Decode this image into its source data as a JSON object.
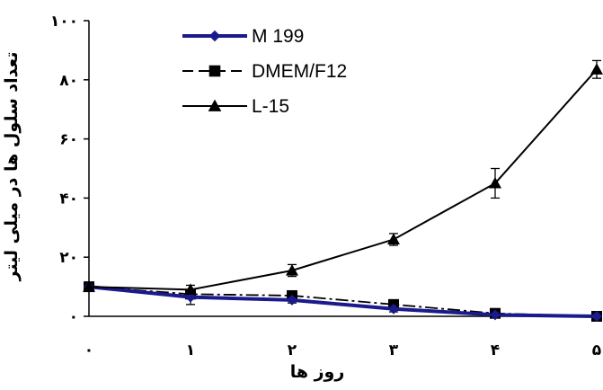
{
  "chart_data": {
    "type": "line",
    "title": "",
    "xlabel": "روز ها",
    "ylabel": "تعداد سلول ها در میلی لیتر",
    "x": [
      0,
      1,
      2,
      3,
      4,
      5
    ],
    "x_tick_labels": [
      "۰",
      "۱",
      "۲",
      "۳",
      "۴",
      "۵"
    ],
    "ylim": [
      0,
      100
    ],
    "y_ticks": [
      0,
      20,
      40,
      60,
      80,
      100
    ],
    "y_tick_labels": [
      "۰",
      "۲۰",
      "۴۰",
      "۶۰",
      "۸۰",
      "۱۰۰"
    ],
    "grid": false,
    "legend_position": "top-left",
    "series": [
      {
        "name": "M 199",
        "values": [
          10,
          6.5,
          5.5,
          2.5,
          0.5,
          0
        ],
        "errors": [
          0,
          2.5,
          1,
          1,
          0.5,
          0
        ],
        "color": "#1a1a8c",
        "marker": "diamond",
        "line_style": "solid-thick"
      },
      {
        "name": "DMEM/F12",
        "values": [
          10,
          7.5,
          7,
          4,
          1,
          0
        ],
        "errors": [
          0,
          1.5,
          1,
          1,
          0.5,
          0
        ],
        "color": "#000000",
        "marker": "square",
        "line_style": "dash-dot"
      },
      {
        "name": "L-15",
        "values": [
          10,
          9,
          15.5,
          26,
          45,
          83.5
        ],
        "errors": [
          0,
          1.5,
          2,
          2,
          5,
          3
        ],
        "color": "#000000",
        "marker": "triangle",
        "line_style": "solid"
      }
    ]
  }
}
